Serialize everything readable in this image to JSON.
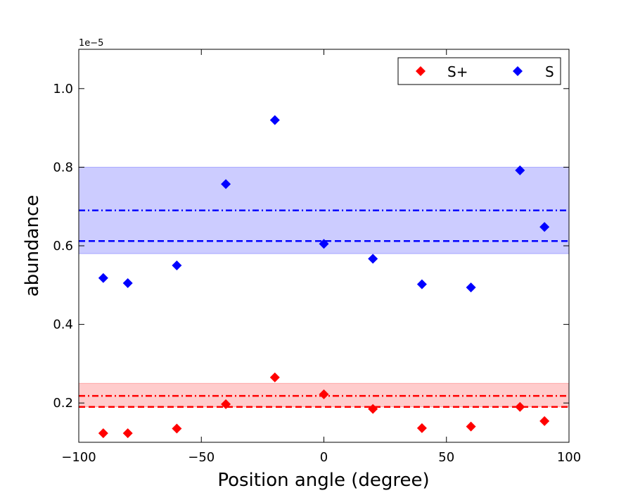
{
  "chart_data": {
    "type": "scatter",
    "title": "",
    "xlabel": "Position angle (degree)",
    "ylabel": "abundance",
    "xlim": [
      -100,
      100
    ],
    "ylim": [
      0.1,
      1.1
    ],
    "y_offset_label": "1e−5",
    "xticks": [
      -100,
      -50,
      0,
      50,
      100
    ],
    "xtick_labels": [
      "−100",
      "−50",
      "0",
      "50",
      "100"
    ],
    "yticks": [
      0.2,
      0.4,
      0.6,
      0.8,
      1.0
    ],
    "ytick_labels": [
      "0.2",
      "0.4",
      "0.6",
      "0.8",
      "1.0"
    ],
    "grid": false,
    "legend_position": "top-right",
    "series": [
      {
        "name": "S+",
        "color": "#ff0000",
        "marker": "diamond",
        "x": [
          -90,
          -80,
          -60,
          -40,
          -20,
          0,
          20,
          40,
          60,
          80,
          90
        ],
        "y": [
          0.123,
          0.123,
          0.135,
          0.197,
          0.265,
          0.222,
          0.185,
          0.136,
          0.14,
          0.19,
          0.154
        ],
        "mean_dashed": 0.19,
        "mean_dashdot": 0.218,
        "band": [
          0.19,
          0.25
        ]
      },
      {
        "name": "S",
        "color": "#0000ff",
        "marker": "diamond",
        "x": [
          -90,
          -80,
          -60,
          -40,
          -20,
          0,
          20,
          40,
          60,
          80,
          90
        ],
        "y": [
          0.518,
          0.505,
          0.55,
          0.757,
          0.92,
          0.605,
          0.567,
          0.502,
          0.494,
          0.792,
          0.648
        ],
        "mean_dashed": 0.612,
        "mean_dashdot": 0.69,
        "band": [
          0.58,
          0.8
        ]
      }
    ]
  }
}
